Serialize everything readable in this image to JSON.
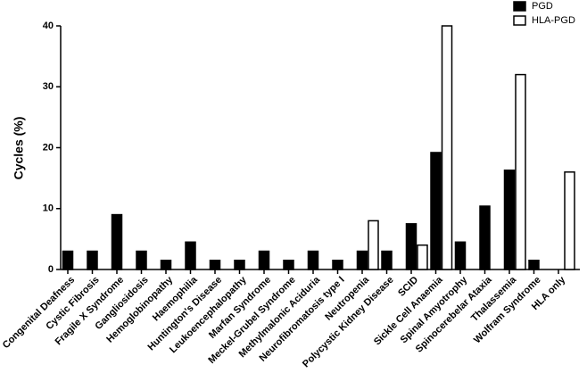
{
  "chart_data": {
    "type": "bar",
    "y_label": "Cycles (%)",
    "categories": [
      "Congenital Deafness",
      "Cystic Fibrosis",
      "Fragile X Syndrome",
      "Gangliosidosis",
      "Hemoglobinopathy",
      "Haemophilia",
      "Huntington's Disease",
      "Leukoencephalopathy",
      "Marfan Syndrome",
      "Meckel-Grubel Syndrome",
      "Methylmalonic Aciduria",
      "Neurofibromatosis type I",
      "Neutropenia",
      "Polycystic Kidney Disease",
      "SCID",
      "Sickle Cell Anaemia",
      "Spinal Amyotrophy",
      "Spinocerebelar Ataxia",
      "Thalassemia",
      "Wolfram Syndrome",
      "HLA only"
    ],
    "series": [
      {
        "name": "PGD",
        "color": "#000000",
        "values": [
          3,
          3,
          9,
          3,
          1.5,
          4.5,
          1.5,
          1.5,
          3,
          1.5,
          3,
          1.5,
          3,
          3,
          7.5,
          19.2,
          4.5,
          10.4,
          16.3,
          1.5,
          null
        ]
      },
      {
        "name": "HLA-PGD",
        "color": "#ffffff",
        "values": [
          null,
          null,
          null,
          null,
          null,
          null,
          null,
          null,
          null,
          null,
          null,
          null,
          8,
          null,
          4,
          40,
          null,
          null,
          32,
          null,
          16
        ]
      }
    ],
    "ylim": [
      0,
      40
    ],
    "yticks": [
      0,
      10,
      20,
      30,
      40
    ],
    "grid": false,
    "legend": "top-right"
  }
}
